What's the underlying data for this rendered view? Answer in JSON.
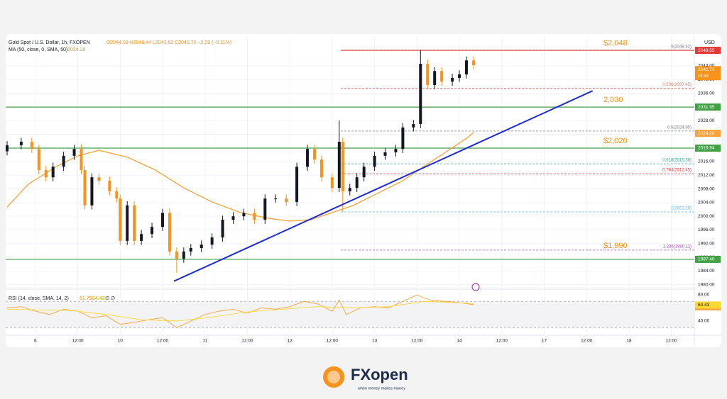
{
  "header": {
    "symbol": "Gold Spot / U.S. Dollar, 1h, FXOPEN",
    "ohlc": "O2044.99 H2046.44 L2042.62 C2042.70 −2.29 (−0.11%)",
    "ma": "MA (50, close, 0, SMA, 50)"
  },
  "chart_data": {
    "type": "candlestick",
    "currency": "USD",
    "up_color": "#131722",
    "down_color": "#f7931a",
    "grid": true,
    "xlim": [
      -8.4,
      186.5
    ],
    "ylim": [
      1979.3,
      2052.5
    ],
    "xticks": [
      {
        "value": 0,
        "label": "6"
      },
      {
        "value": 12,
        "label": "12:00"
      },
      {
        "value": 24,
        "label": "10"
      },
      {
        "value": 36,
        "label": "12:00"
      },
      {
        "value": 48,
        "label": "11"
      },
      {
        "value": 60,
        "label": "12:00"
      },
      {
        "value": 72,
        "label": "12"
      },
      {
        "value": 84,
        "label": "12:00"
      },
      {
        "value": 96,
        "label": "13"
      },
      {
        "value": 108,
        "label": "12:00"
      },
      {
        "value": 120,
        "label": "14"
      },
      {
        "value": 132,
        "label": "12:00"
      },
      {
        "value": 144,
        "label": "17"
      },
      {
        "value": 156,
        "label": "12:00"
      },
      {
        "value": 168,
        "label": "18"
      },
      {
        "value": 180,
        "label": "12:00"
      }
    ],
    "yticks": [
      {
        "value": 1980,
        "label": "1980.00"
      },
      {
        "value": 1984,
        "label": "1984.00"
      },
      {
        "value": 1988,
        "label": "1988.00"
      },
      {
        "value": 1992,
        "label": "1992.00"
      },
      {
        "value": 1996,
        "label": "1996.00"
      },
      {
        "value": 2000,
        "label": "2000.00"
      },
      {
        "value": 2004,
        "label": "2004.00"
      },
      {
        "value": 2008,
        "label": "2008.00"
      },
      {
        "value": 2012,
        "label": "2012.00"
      },
      {
        "value": 2016,
        "label": "2016.00"
      },
      {
        "value": 2020,
        "label": "2020.00"
      },
      {
        "value": 2024,
        "label": "2024.00"
      },
      {
        "value": 2028,
        "label": "2028.00"
      },
      {
        "value": 2032,
        "label": "2032.00"
      },
      {
        "value": 2036,
        "label": "2036.00"
      },
      {
        "value": 2040,
        "label": "2040.00"
      },
      {
        "value": 2044,
        "label": "2044.00"
      }
    ],
    "x": [
      -8,
      -4,
      -1,
      1,
      3,
      5,
      8,
      11,
      13,
      14,
      16,
      18,
      21,
      23,
      24,
      26,
      28,
      30,
      33,
      36,
      38,
      40,
      42,
      44,
      47,
      50,
      53,
      56,
      59,
      62,
      65,
      68,
      71,
      74,
      77,
      79,
      81,
      84,
      86,
      87,
      89,
      91,
      93,
      96,
      99,
      102,
      104,
      107,
      109,
      111,
      113,
      115,
      118,
      120,
      122,
      124
    ],
    "open": [
      2019.0,
      2020.8,
      2021.8,
      2019.7,
      2013.5,
      2011.4,
      2014.5,
      2017.7,
      2019.7,
      2013.5,
      2003.2,
      2011.4,
      2010.4,
      2007.3,
      2005.2,
      1992.8,
      2003.2,
      1992.8,
      1994.8,
      1996.9,
      2001.0,
      1989.7,
      1987.6,
      1989.7,
      1990.7,
      1991.7,
      1993.8,
      1999.0,
      2000.0,
      2001.0,
      1999.0,
      2005.2,
      2005.2,
      2004.2,
      2014.5,
      2019.7,
      2016.6,
      2011.4,
      2008.3,
      2021.8,
      2007.3,
      2008.3,
      2011.4,
      2014.5,
      2017.7,
      2018.7,
      2019.7,
      2026.0,
      2027.0,
      2044.6,
      2038.4,
      2042.5,
      2039.4,
      2040.5,
      2041.5,
      2045.6
    ],
    "high": [
      2022.0,
      2023.0,
      2023.0,
      2020.9,
      2014.7,
      2015.7,
      2018.9,
      2020.9,
      2020.9,
      2014.7,
      2012.6,
      2012.6,
      2011.6,
      2008.5,
      2006.4,
      2004.4,
      2004.4,
      1996.0,
      1998.1,
      2002.2,
      2002.2,
      1990.9,
      1990.9,
      1991.9,
      1992.9,
      1995.0,
      2000.2,
      2001.2,
      2002.2,
      2002.2,
      2006.4,
      2006.4,
      2006.4,
      2015.7,
      2020.9,
      2020.9,
      2017.8,
      2012.6,
      2028.0,
      2023.0,
      2009.5,
      2012.6,
      2015.7,
      2018.9,
      2019.9,
      2020.9,
      2027.2,
      2028.2,
      2048.6,
      2045.8,
      2043.7,
      2043.7,
      2041.7,
      2042.7,
      2046.8,
      2046.8
    ],
    "low": [
      2017.8,
      2019.6,
      2018.5,
      2012.3,
      2010.2,
      2010.2,
      2013.3,
      2016.5,
      2012.3,
      2002.0,
      2002.0,
      2009.2,
      2006.1,
      2004.0,
      1991.6,
      1991.6,
      1991.6,
      1991.6,
      1993.6,
      1995.7,
      1988.5,
      1983.5,
      1986.4,
      1988.5,
      1989.5,
      1990.5,
      1992.6,
      1997.8,
      1998.8,
      1997.8,
      1997.8,
      2004.0,
      2003.0,
      2003.0,
      2013.3,
      2015.4,
      2010.2,
      2007.1,
      2007.1,
      2001.3,
      2006.1,
      2007.1,
      2010.2,
      2013.3,
      2016.5,
      2017.5,
      2018.5,
      2024.8,
      2025.8,
      2037.2,
      2037.2,
      2038.2,
      2038.2,
      2039.3,
      2040.3,
      2043.0
    ],
    "close": [
      2020.8,
      2021.8,
      2019.7,
      2013.5,
      2011.4,
      2014.5,
      2017.7,
      2019.7,
      2013.5,
      2003.2,
      2011.4,
      2010.4,
      2007.3,
      2005.2,
      1992.8,
      2003.2,
      1992.8,
      1994.8,
      1996.9,
      2001.0,
      1989.7,
      1987.6,
      1989.7,
      1990.7,
      1991.7,
      1993.8,
      1999.0,
      2000.0,
      2001.0,
      1999.0,
      2005.2,
      2005.2,
      2004.2,
      2014.5,
      2019.7,
      2016.6,
      2011.4,
      2008.3,
      2021.8,
      2007.3,
      2008.3,
      2011.4,
      2014.5,
      2017.7,
      2018.7,
      2019.7,
      2026.0,
      2027.0,
      2044.6,
      2038.4,
      2042.5,
      2039.4,
      2040.5,
      2041.5,
      2045.6,
      2044.2
    ],
    "current": {
      "value": 2042.7,
      "label": "2042.70",
      "time": "15:44",
      "color": "#f7931a"
    },
    "ma": {
      "color": "#f7a23b",
      "last": 2024.28,
      "x": [
        -8,
        -2,
        6,
        12,
        18,
        26,
        34,
        42,
        50,
        58,
        66,
        72,
        78,
        84,
        90,
        96,
        104,
        110,
        116,
        122,
        124
      ],
      "values": [
        2002.7,
        2009.4,
        2014.6,
        2017.7,
        2019.3,
        2017.3,
        2013.5,
        2008.3,
        2004.2,
        2001.1,
        1999.4,
        1998.6,
        1999.0,
        2001.1,
        2003.2,
        2006.3,
        2010.4,
        2014.6,
        2018.7,
        2022.8,
        2024.5
      ]
    },
    "trend_line": {
      "color": "#1f2bd6",
      "x": [
        39.2,
        157.7
      ],
      "values": [
        1981.0,
        2036.7
      ]
    },
    "levels": [
      {
        "value": 2048.55,
        "label": "2048.55",
        "color": "#e53935",
        "note": "$2,048",
        "extend": "right"
      },
      {
        "value": 2031.95,
        "label": "2031.95",
        "color": "#43a047",
        "note": "2,030",
        "extend": "both"
      },
      {
        "value": 2019.94,
        "label": "2019.94",
        "color": "#43a047",
        "note": "$2,020",
        "extend": "both"
      },
      {
        "value": 1987.4,
        "label": "1987.40",
        "color": "#43a047",
        "extend": "both"
      }
    ],
    "fib": [
      {
        "value": 2048.62,
        "label": "0(2048.62)",
        "color": "#787b86"
      },
      {
        "value": 2037.45,
        "label": "0.236(2037.45)",
        "color": "#e57373"
      },
      {
        "value": 2024.95,
        "label": "0.5(2024.95)",
        "color": "#787b86"
      },
      {
        "value": 2015.36,
        "label": "0.618(2015.36)",
        "color": "#26a69a"
      },
      {
        "value": 2012.45,
        "label": "0.764(2012.45)",
        "color": "#e53935"
      },
      {
        "value": 2001.28,
        "label": "1(2001.28)",
        "color": "#64b5f6"
      },
      {
        "value": 1990.11,
        "label": "1.236(1990.11)",
        "color": "#ab47bc",
        "note": "$1,990"
      }
    ]
  },
  "rsi": {
    "type": "line",
    "title": "RSI (14, close, SMA, 14, 2)",
    "extra": "∅ ∅",
    "ylim": [
      21.6,
      86.5
    ],
    "bands": [
      30,
      70
    ],
    "yticks": [
      {
        "value": 80,
        "label": "80.00"
      },
      {
        "value": 40,
        "label": "40.00"
      }
    ],
    "series": [
      {
        "color": "#f7a23b",
        "last": 61.79,
        "x": [
          -8,
          -4,
          0,
          4,
          8,
          12,
          16,
          20,
          24,
          28,
          32,
          36,
          40,
          44,
          48,
          52,
          56,
          60,
          64,
          68,
          72,
          76,
          80,
          84,
          86,
          88,
          92,
          96,
          100,
          104,
          108,
          110,
          112,
          116,
          120,
          124
        ],
        "values": [
          60,
          62,
          55,
          50,
          58,
          55,
          45,
          48,
          35,
          38,
          42,
          45,
          30,
          40,
          50,
          55,
          58,
          52,
          60,
          58,
          62,
          70,
          66,
          55,
          72,
          50,
          60,
          62,
          60,
          70,
          80,
          75,
          72,
          70,
          68,
          65
        ]
      },
      {
        "color": "#fdd835",
        "last": 64.43,
        "x": [
          -8,
          10,
          20,
          30,
          40,
          50,
          60,
          70,
          80,
          90,
          100,
          110,
          120,
          124
        ],
        "values": [
          58,
          56,
          50,
          42,
          40,
          46,
          54,
          58,
          62,
          60,
          62,
          70,
          68,
          66
        ]
      }
    ]
  },
  "footer": {
    "brand": "FXopen",
    "tagline": "when money makes money"
  }
}
